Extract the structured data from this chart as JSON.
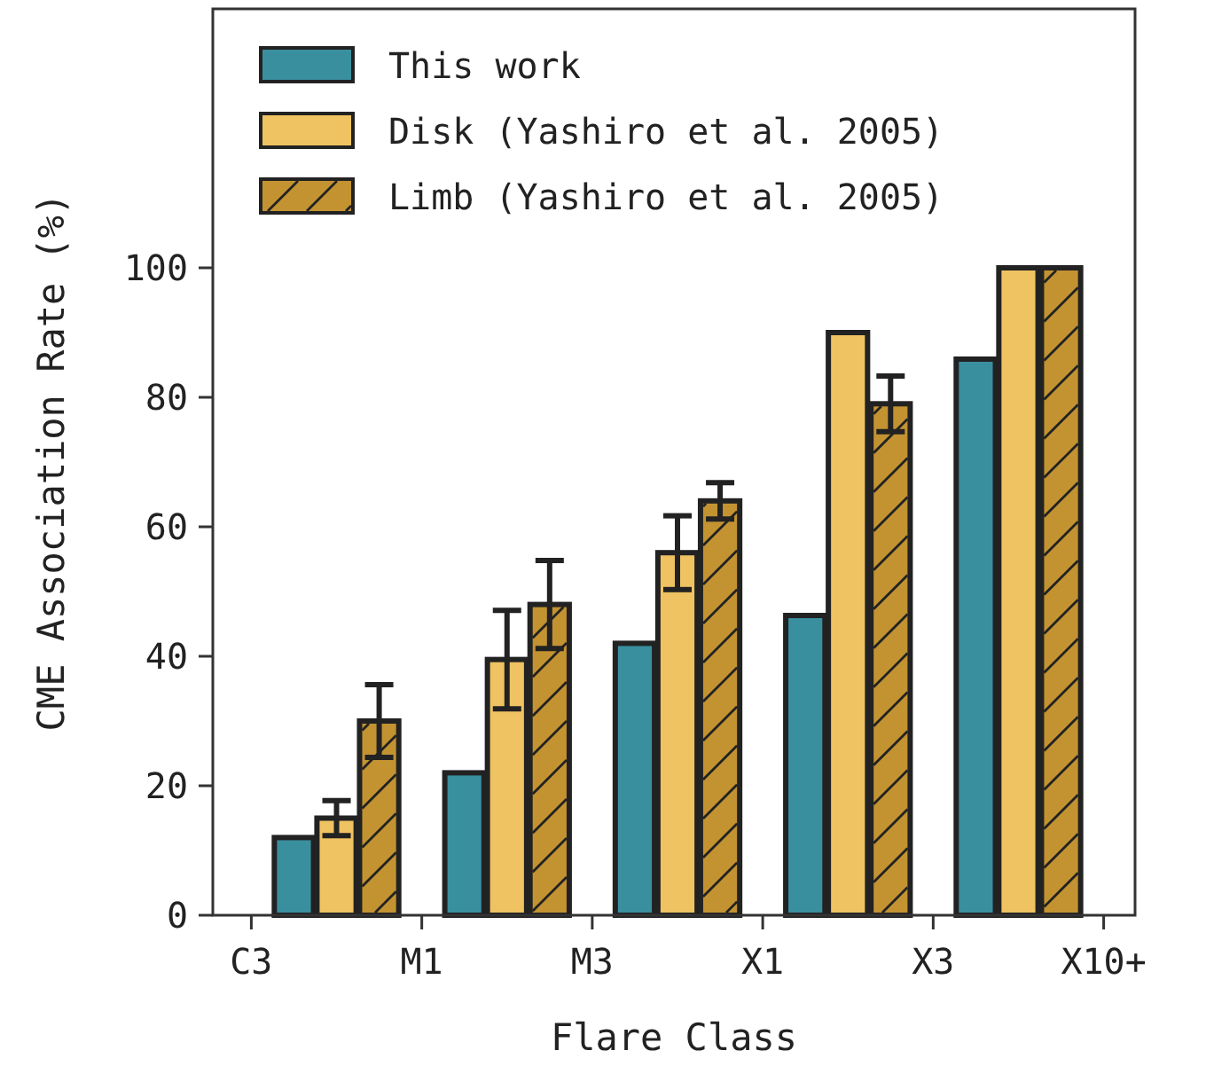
{
  "chart_data": {
    "type": "bar",
    "xlabel": "Flare Class",
    "ylabel": "CME Association Rate (%)",
    "categories": [
      "C3",
      null,
      null,
      null,
      "M1",
      null,
      null,
      null,
      "M3",
      null,
      null,
      null,
      "X1",
      null,
      null,
      null,
      "X3",
      null,
      null,
      null,
      "X10+"
    ],
    "ylim": [
      0,
      140
    ],
    "yticks": [
      0,
      20,
      40,
      60,
      80,
      100
    ],
    "series": [
      {
        "name": "This work",
        "color": "#3a8f9f",
        "values": [
          null,
          12,
          null,
          null,
          null,
          22,
          null,
          null,
          null,
          42,
          null,
          null,
          null,
          46.3,
          null,
          null,
          null,
          85.9,
          null,
          null,
          null
        ]
      },
      {
        "name": "Disk (Yashiro et al. 2005)",
        "color": "#efc361",
        "values": [
          null,
          null,
          15,
          null,
          null,
          null,
          39.5,
          null,
          null,
          null,
          56,
          null,
          null,
          null,
          90,
          null,
          null,
          null,
          100,
          null,
          null
        ],
        "errors": [
          null,
          null,
          2.7,
          null,
          null,
          null,
          7.6,
          null,
          null,
          null,
          5.7,
          null,
          null,
          null,
          null,
          null,
          null,
          null,
          null,
          null,
          null
        ]
      },
      {
        "name": "Limb (Yashiro et al. 2005)",
        "color": "#c39332",
        "values": [
          null,
          null,
          null,
          30,
          null,
          null,
          null,
          48,
          null,
          null,
          null,
          64,
          null,
          null,
          null,
          79,
          null,
          null,
          null,
          100,
          null
        ],
        "errors": [
          null,
          null,
          null,
          5.6,
          null,
          null,
          null,
          6.8,
          null,
          null,
          null,
          2.8,
          null,
          null,
          null,
          4.3,
          null,
          null,
          null,
          null,
          null
        ]
      }
    ],
    "legend": "top left"
  }
}
